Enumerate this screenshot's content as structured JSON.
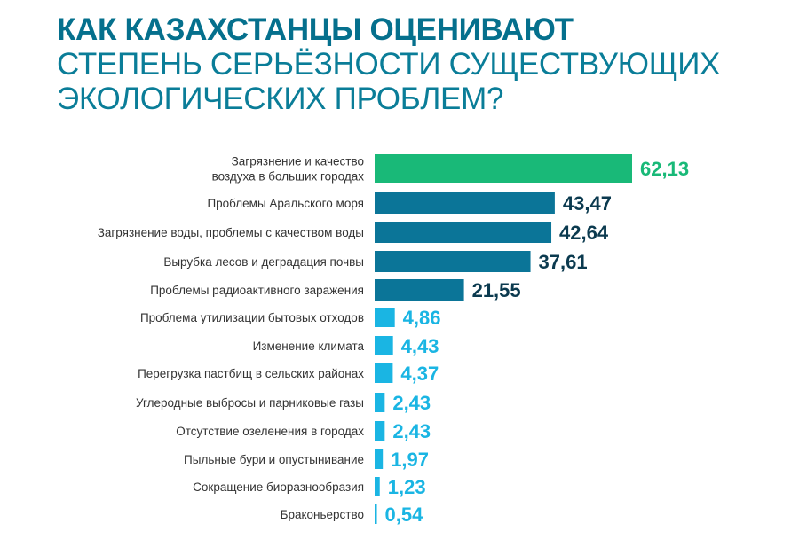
{
  "title": {
    "line1": "КАК КАЗАХСТАНЦЫ ОЦЕНИВАЮТ",
    "line2": "СТЕПЕНЬ СЕРЬЁЗНОСТИ СУЩЕСТВУЮЩИХ",
    "line3": "ЭКОЛОГИЧЕСКИХ ПРОБЛЕМ?"
  },
  "colors": {
    "title": "#05708d",
    "top": "#19b978",
    "major": "#0b7598",
    "minor": "#1ab5e3",
    "major_value_text": "#0b3a4f",
    "label_text": "#333333"
  },
  "chart_data": {
    "type": "bar",
    "orientation": "horizontal",
    "title": "КАК КАЗАХСТАНЦЫ ОЦЕНИВАЮТ СТЕПЕНЬ СЕРЬЁЗНОСТИ СУЩЕСТВУЮЩИХ ЭКОЛОГИЧЕСКИХ ПРОБЛЕМ?",
    "xlabel": "",
    "ylabel": "",
    "grid": false,
    "xlim": [
      0,
      62.13
    ],
    "categories": [
      [
        "Загрязнение и качество",
        "воздуха в больших городах"
      ],
      [
        "Проблемы Аральского моря"
      ],
      [
        "Загрязнение воды, проблемы с качеством воды"
      ],
      [
        "Вырубка лесов и деградация почвы"
      ],
      [
        "Проблемы радиоактивного заражения"
      ],
      [
        "Проблема утилизации бытовых отходов"
      ],
      [
        "Изменение климата"
      ],
      [
        "Перегрузка пастбищ в сельских районах"
      ],
      [
        "Углеродные выбросы и парниковые газы"
      ],
      [
        "Отсутствие озеленения в городах"
      ],
      [
        "Пыльные бури и опустынивание"
      ],
      [
        "Сокращение биоразнообразия"
      ],
      [
        "Браконьерство"
      ]
    ],
    "values": [
      62.13,
      43.47,
      42.64,
      37.61,
      21.55,
      4.86,
      4.43,
      4.37,
      2.43,
      2.43,
      1.97,
      1.23,
      0.54
    ],
    "value_labels": [
      "62,13",
      "43,47",
      "42,64",
      "37,61",
      "21,55",
      "4,86",
      "4,43",
      "4,37",
      "2,43",
      "2,43",
      "1,97",
      "1,23",
      "0,54"
    ],
    "bar_color_groups": [
      "top",
      "major",
      "major",
      "major",
      "major",
      "minor",
      "minor",
      "minor",
      "minor",
      "minor",
      "minor",
      "minor",
      "minor"
    ]
  }
}
